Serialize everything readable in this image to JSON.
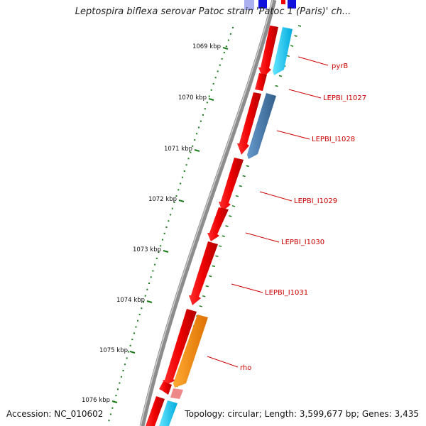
{
  "header": {
    "title": "Leptospira biflexa serovar Patoc strain 'Patoc 1 (Paris)' ch..."
  },
  "footer": {
    "accession": "Accession: NC_010602",
    "topology": "Topology: circular; Length: 3,599,677 bp; Genes: 3,435"
  },
  "ruler_labels": [
    "1069 kbp",
    "1070 kbp",
    "1071 kbp",
    "1072 kbp",
    "1073 kbp",
    "1074 kbp",
    "1075 kbp",
    "1076 kbp"
  ],
  "gene_labels": [
    "pyrB",
    "LEPBI_I1027",
    "LEPBI_I1028",
    "LEPBI_I1029",
    "LEPBI_I1030",
    "LEPBI_I1031",
    "rho"
  ],
  "colors": {
    "backbone": "#8c8c8c",
    "gene_red": "#ee0000",
    "gene_cyan": "#22ccff",
    "gene_steelblue": "#4477aa",
    "gene_orange": "#ff8800",
    "gene_pink": "#ee8888",
    "gene_blue": "#1111dd",
    "ruler_green": "#1a7a1a",
    "label_red": "#cc0000"
  }
}
